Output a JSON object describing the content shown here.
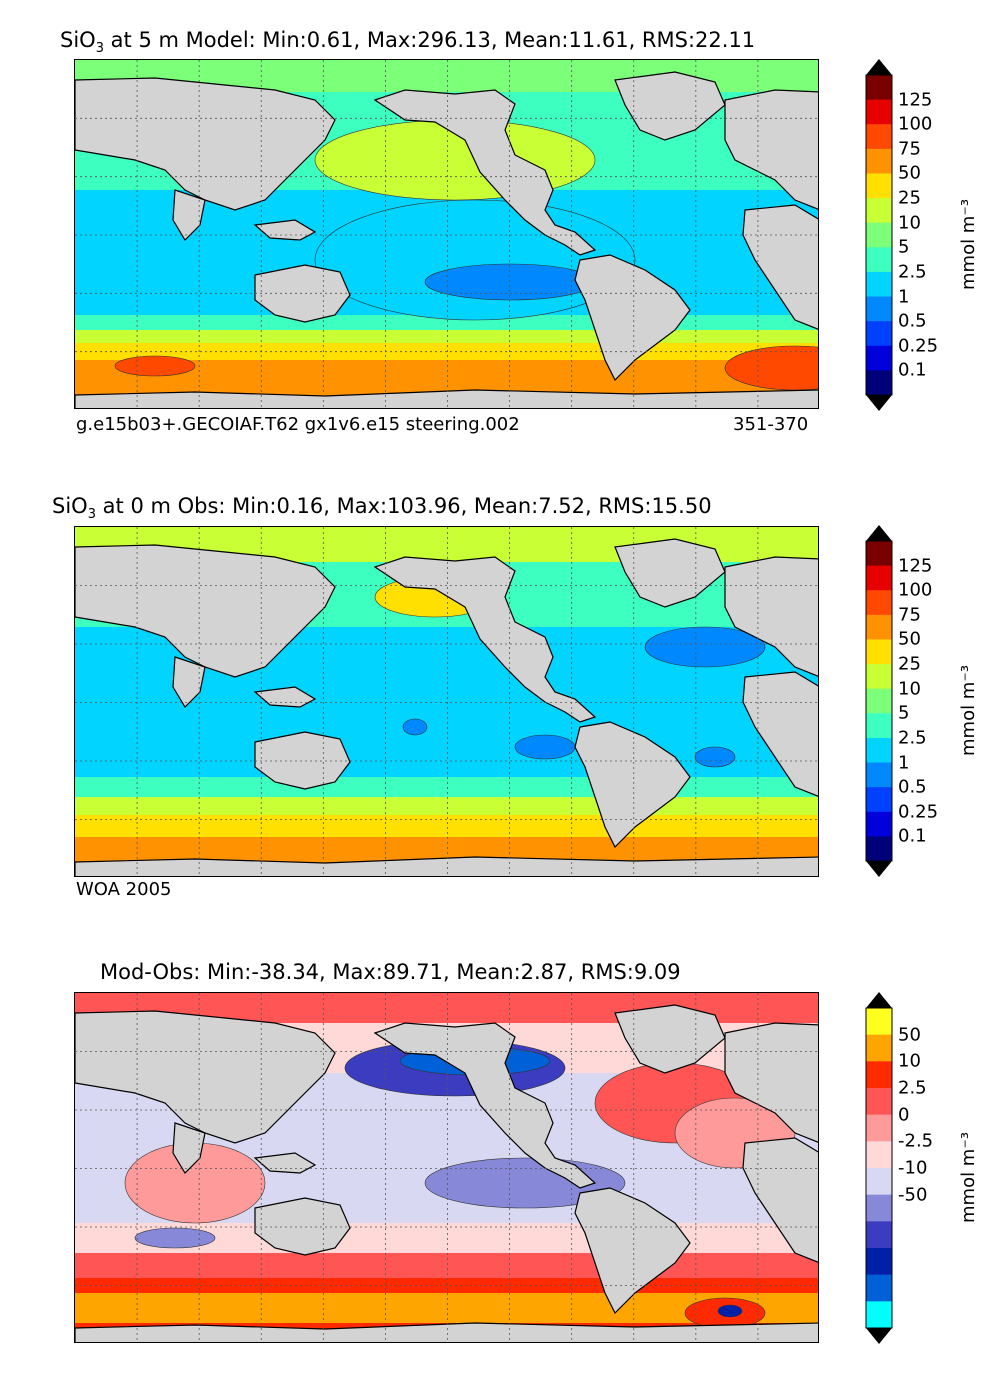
{
  "panels": [
    {
      "title_prefix": "SiO",
      "title_sub": "3",
      "title_rest": " at 5 m Model: Min:0.61, Max:296.13, Mean:11.61, RMS:22.11",
      "caption_left": "g.e15b03+.GECOIAF.T62 gx1v6.e15 steering.002",
      "caption_right": "351-370",
      "colorbar": {
        "units": "mmol m⁻³",
        "ticks": [
          "125",
          "100",
          "75",
          "50",
          "25",
          "10",
          "5",
          "2.5",
          "1",
          "0.5",
          "0.25",
          "0.1"
        ],
        "colors": [
          "#7a0000",
          "#e60000",
          "#ff4800",
          "#ff9200",
          "#ffe000",
          "#c8ff35",
          "#7cff79",
          "#3dffc0",
          "#00d4ff",
          "#0088ff",
          "#0040ff",
          "#0000dd",
          "#00007a"
        ]
      }
    },
    {
      "title_prefix": "SiO",
      "title_sub": "3",
      "title_rest": " at 0 m Obs: Min:0.16, Max:103.96, Mean:7.52, RMS:15.50",
      "caption_left": "WOA 2005",
      "caption_right": "",
      "colorbar": {
        "units": "mmol m⁻³",
        "ticks": [
          "125",
          "100",
          "75",
          "50",
          "25",
          "10",
          "5",
          "2.5",
          "1",
          "0.5",
          "0.25",
          "0.1"
        ],
        "colors": [
          "#7a0000",
          "#e60000",
          "#ff4800",
          "#ff9200",
          "#ffe000",
          "#c8ff35",
          "#7cff79",
          "#3dffc0",
          "#00d4ff",
          "#0088ff",
          "#0040ff",
          "#0000dd",
          "#00007a"
        ]
      }
    },
    {
      "title_prefix": "",
      "title_sub": "",
      "title_rest": "Mod-Obs: Min:-38.34, Max:89.71, Mean:2.87, RMS:9.09",
      "caption_left": "",
      "caption_right": "",
      "colorbar": {
        "units": "mmol m⁻³",
        "ticks": [
          "50",
          "10",
          "2.5",
          "0",
          "-2.5",
          "-10",
          "-50"
        ],
        "colors": [
          "#ffff20",
          "#ffa500",
          "#ff2a00",
          "#ff5555",
          "#ff9a9a",
          "#ffd8d8",
          "#d8d8f2",
          "#8888d8",
          "#3c3cc0",
          "#0020a8",
          "#0060d8",
          "#00ffff"
        ]
      }
    }
  ],
  "colors": {
    "land": "#d3d3d3",
    "grid": "#555555",
    "background": "#ffffff"
  }
}
